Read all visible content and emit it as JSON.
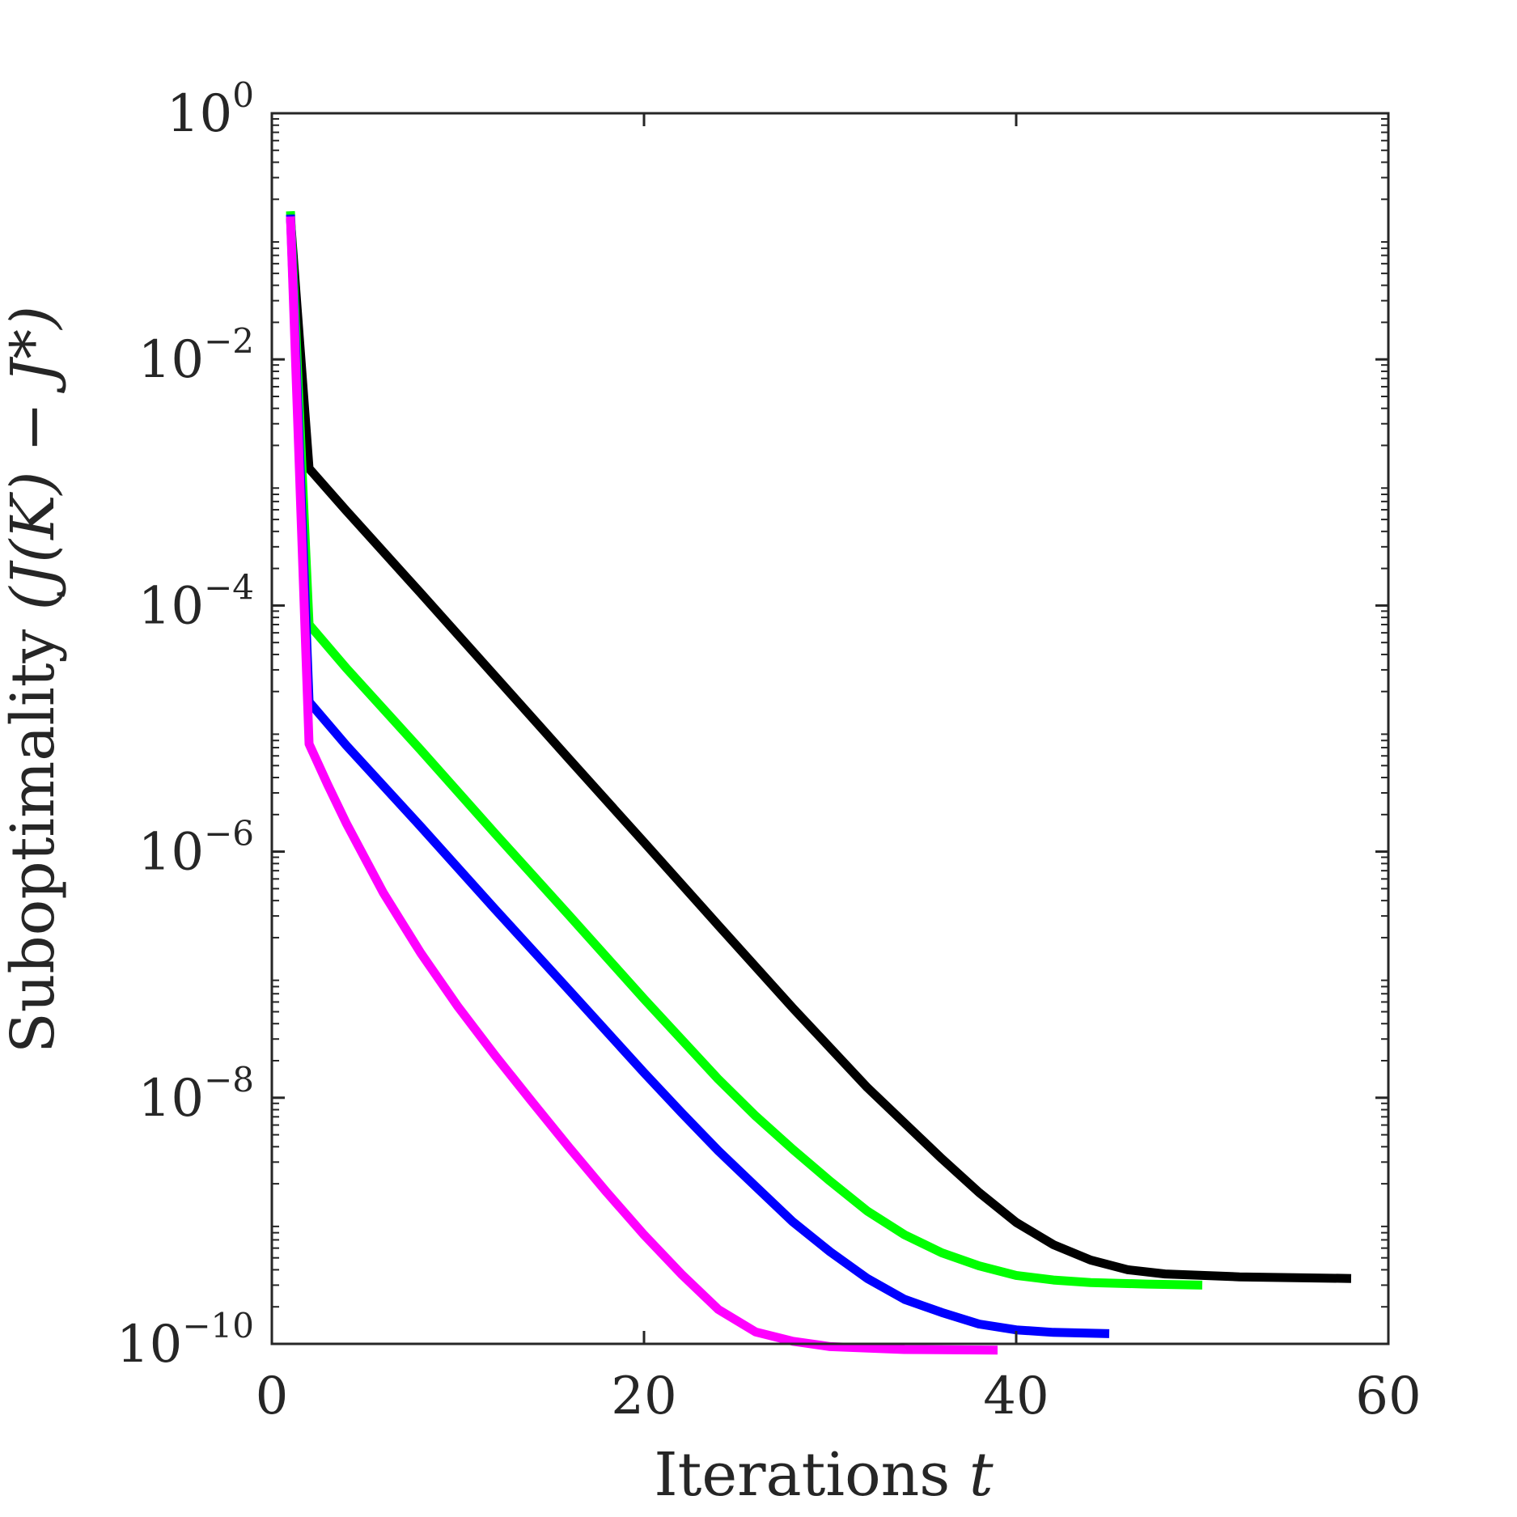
{
  "chart_data": {
    "type": "line",
    "title": "",
    "xlabel": "Iterations",
    "xlabel_var": "t",
    "ylabel_text": "Suboptimality",
    "ylabel_math": "(J(K) − J*)",
    "xscale": "linear",
    "yscale": "log",
    "xlim": [
      0,
      60
    ],
    "ylim": [
      1e-10,
      1
    ],
    "xticks": [
      0,
      20,
      40,
      60
    ],
    "xtick_labels": [
      "0",
      "20",
      "40",
      "60"
    ],
    "yticks_exp": [
      0,
      -2,
      -4,
      -6,
      -8,
      -10
    ],
    "ytick_base": "10",
    "grid": false,
    "legend": "none",
    "axis_color": "#262626",
    "series": [
      {
        "color": "#000000",
        "points": [
          [
            1,
            0.14
          ],
          [
            2,
            0.0013
          ],
          [
            4,
            0.00059
          ],
          [
            8,
            0.000126
          ],
          [
            12,
            2.66e-05
          ],
          [
            16,
            5.6e-06
          ],
          [
            20,
            1.19e-06
          ],
          [
            24,
            2.51e-07
          ],
          [
            28,
            5.35e-08
          ],
          [
            32,
            1.21e-08
          ],
          [
            36,
            3.2e-09
          ],
          [
            38,
            1.7e-09
          ],
          [
            40,
            9.7e-10
          ],
          [
            42,
            6.4e-10
          ],
          [
            44,
            4.8e-10
          ],
          [
            46,
            4e-10
          ],
          [
            48,
            3.7e-10
          ],
          [
            52,
            3.5e-10
          ],
          [
            55,
            3.45e-10
          ],
          [
            58,
            3.4e-10
          ]
        ]
      },
      {
        "color": "#00ff00",
        "points": [
          [
            1,
            0.16
          ],
          [
            2,
            7e-05
          ],
          [
            4,
            3.1e-05
          ],
          [
            8,
            6.7e-06
          ],
          [
            12,
            1.4e-06
          ],
          [
            16,
            3e-07
          ],
          [
            20,
            6.35e-08
          ],
          [
            24,
            1.41e-08
          ],
          [
            26,
            7.1e-09
          ],
          [
            28,
            3.8e-09
          ],
          [
            30,
            2.1e-09
          ],
          [
            32,
            1.2e-09
          ],
          [
            34,
            7.7e-10
          ],
          [
            36,
            5.5e-10
          ],
          [
            38,
            4.3e-10
          ],
          [
            40,
            3.6e-10
          ],
          [
            42,
            3.3e-10
          ],
          [
            44,
            3.15e-10
          ],
          [
            47,
            3.06e-10
          ],
          [
            50,
            3e-10
          ]
        ]
      },
      {
        "color": "#0000ff",
        "points": [
          [
            1,
            0.15
          ],
          [
            2,
            1.65e-05
          ],
          [
            4,
            7.3e-06
          ],
          [
            8,
            1.6e-06
          ],
          [
            12,
            3.4e-07
          ],
          [
            16,
            7.4e-08
          ],
          [
            20,
            1.6e-08
          ],
          [
            22,
            7.6e-09
          ],
          [
            24,
            3.7e-09
          ],
          [
            26,
            1.9e-09
          ],
          [
            28,
            9.8e-10
          ],
          [
            30,
            5.6e-10
          ],
          [
            32,
            3.4e-10
          ],
          [
            34,
            2.3e-10
          ],
          [
            36,
            1.8e-10
          ],
          [
            38,
            1.45e-10
          ],
          [
            40,
            1.3e-10
          ],
          [
            42,
            1.24e-10
          ],
          [
            45,
            1.21e-10
          ]
        ]
      },
      {
        "color": "#ff00ff",
        "points": [
          [
            1,
            0.145
          ],
          [
            2,
            7.5e-06
          ],
          [
            3,
            3.5e-06
          ],
          [
            4,
            1.7e-06
          ],
          [
            6,
            4.6e-07
          ],
          [
            8,
            1.5e-07
          ],
          [
            10,
            5.5e-08
          ],
          [
            12,
            2.2e-08
          ],
          [
            14,
            9.2e-09
          ],
          [
            16,
            3.9e-09
          ],
          [
            18,
            1.7e-09
          ],
          [
            20,
            7.7e-10
          ],
          [
            22,
            3.7e-10
          ],
          [
            24,
            1.9e-10
          ],
          [
            26,
            1.25e-10
          ],
          [
            28,
            1.05e-10
          ],
          [
            30,
            9.5e-11
          ],
          [
            34,
            9e-11
          ],
          [
            39,
            8.9e-11
          ]
        ]
      }
    ]
  }
}
